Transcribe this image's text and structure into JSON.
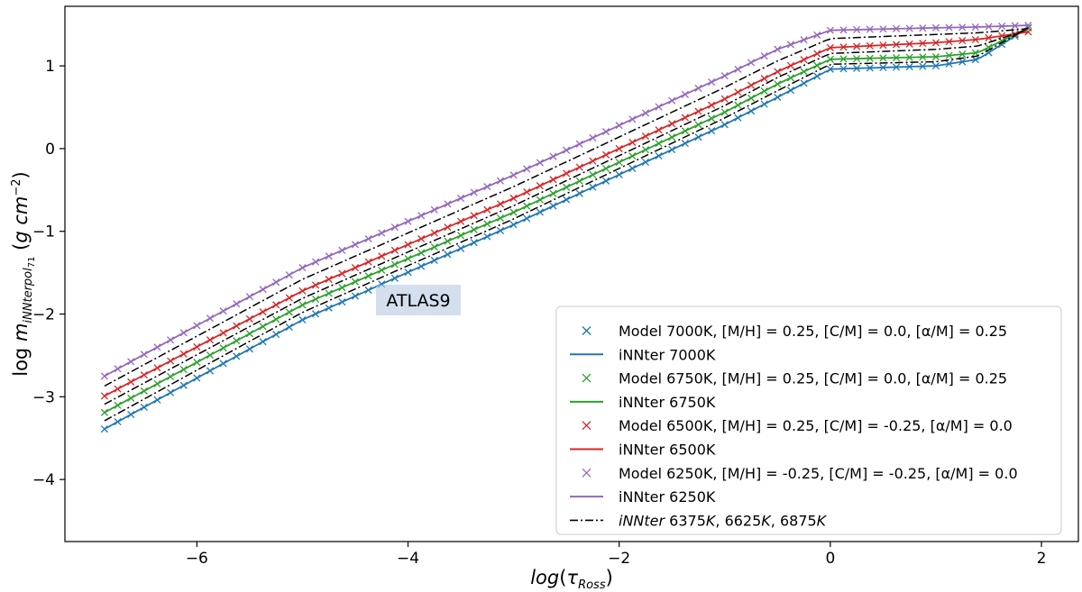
{
  "chart_data": {
    "type": "line",
    "xlabel": "log(τ_Ross)",
    "ylabel": "log m_iNNterpol71 (g cm^-2)",
    "xlim": [
      -7.25,
      2.35
    ],
    "ylim": [
      -4.75,
      1.72
    ],
    "xticks": [
      -6,
      -4,
      -2,
      0,
      2
    ],
    "yticks": [
      -4,
      -3,
      -2,
      -1,
      0,
      1
    ],
    "xtick_labels": [
      "−6",
      "−4",
      "−2",
      "0",
      "2"
    ],
    "ytick_labels": [
      "−4",
      "−3",
      "−2",
      "−1",
      "0",
      "1"
    ],
    "annotation": "ATLAS9",
    "x_range": [
      -6.875,
      1.875
    ],
    "series": [
      {
        "name": "Model 7000K, [M/H] = 0.25, [C/M] = 0.0,  [α/M] = 0.25",
        "kind": "model",
        "color": "#1f77b4",
        "anchors": [
          [
            -6.875,
            -3.39
          ],
          [
            -5.0,
            -2.07
          ],
          [
            -3.0,
            -0.92
          ],
          [
            -1.0,
            0.29
          ],
          [
            -0.5,
            0.62
          ],
          [
            0.0,
            0.96
          ],
          [
            1.0,
            1.0
          ],
          [
            1.4,
            1.08
          ],
          [
            1.875,
            1.46
          ]
        ]
      },
      {
        "name": "iNNter 7000K",
        "kind": "fit",
        "color": "#1f77b4",
        "anchors": [
          [
            -6.875,
            -3.39
          ],
          [
            -5.0,
            -2.07
          ],
          [
            -3.0,
            -0.92
          ],
          [
            -1.0,
            0.29
          ],
          [
            -0.5,
            0.62
          ],
          [
            0.0,
            0.96
          ],
          [
            1.0,
            1.0
          ],
          [
            1.4,
            1.08
          ],
          [
            1.875,
            1.46
          ]
        ]
      },
      {
        "name": "Model 6750K, [M/H] = 0.25, [C/M] = 0.0,  [α/M] = 0.25",
        "kind": "model",
        "color": "#2ca02c",
        "anchors": [
          [
            -6.875,
            -3.19
          ],
          [
            -5.0,
            -1.89
          ],
          [
            -3.0,
            -0.77
          ],
          [
            -1.0,
            0.44
          ],
          [
            -0.5,
            0.78
          ],
          [
            0.0,
            1.08
          ],
          [
            1.0,
            1.11
          ],
          [
            1.4,
            1.16
          ],
          [
            1.875,
            1.46
          ]
        ]
      },
      {
        "name": "iNNter 6750K",
        "kind": "fit",
        "color": "#2ca02c",
        "anchors": [
          [
            -6.875,
            -3.19
          ],
          [
            -5.0,
            -1.89
          ],
          [
            -3.0,
            -0.77
          ],
          [
            -1.0,
            0.44
          ],
          [
            -0.5,
            0.78
          ],
          [
            0.0,
            1.08
          ],
          [
            1.0,
            1.11
          ],
          [
            1.4,
            1.16
          ],
          [
            1.875,
            1.46
          ]
        ]
      },
      {
        "name": "Model 6500K, [M/H] = 0.25, [C/M] = -0.25,  [α/M] = 0.0",
        "kind": "model",
        "color": "#d62728",
        "anchors": [
          [
            -6.875,
            -2.99
          ],
          [
            -5.0,
            -1.72
          ],
          [
            -3.0,
            -0.6
          ],
          [
            -1.0,
            0.6
          ],
          [
            -0.5,
            0.93
          ],
          [
            0.0,
            1.22
          ],
          [
            1.0,
            1.28
          ],
          [
            1.4,
            1.32
          ],
          [
            1.875,
            1.41
          ]
        ]
      },
      {
        "name": "iNNter 6500K",
        "kind": "fit",
        "color": "#d62728",
        "anchors": [
          [
            -6.875,
            -2.99
          ],
          [
            -5.0,
            -1.72
          ],
          [
            -3.0,
            -0.6
          ],
          [
            -1.0,
            0.6
          ],
          [
            -0.5,
            0.93
          ],
          [
            0.0,
            1.22
          ],
          [
            1.0,
            1.28
          ],
          [
            1.4,
            1.32
          ],
          [
            1.875,
            1.41
          ]
        ]
      },
      {
        "name": "Model 6250K, [M/H] = -0.25, [C/M] = -0.25,  [α/M] = 0.0",
        "kind": "model",
        "color": "#9467bd",
        "anchors": [
          [
            -6.875,
            -2.75
          ],
          [
            -5.0,
            -1.44
          ],
          [
            -3.0,
            -0.32
          ],
          [
            -1.0,
            0.88
          ],
          [
            -0.5,
            1.2
          ],
          [
            0.0,
            1.43
          ],
          [
            1.0,
            1.46
          ],
          [
            1.4,
            1.47
          ],
          [
            1.875,
            1.49
          ]
        ]
      },
      {
        "name": "iNNter 6250K",
        "kind": "fit",
        "color": "#9467bd",
        "anchors": [
          [
            -6.875,
            -2.75
          ],
          [
            -5.0,
            -1.44
          ],
          [
            -3.0,
            -0.32
          ],
          [
            -1.0,
            0.88
          ],
          [
            -0.5,
            1.2
          ],
          [
            0.0,
            1.43
          ],
          [
            1.0,
            1.46
          ],
          [
            1.4,
            1.47
          ],
          [
            1.875,
            1.49
          ]
        ]
      },
      {
        "name": "iNNter 6375K, 6625K, 6875K",
        "kind": "interp",
        "color": "#000000",
        "label_parts": [
          "iNNter",
          " 6375",
          "K",
          ",  6625",
          "K",
          ",  6875",
          "K"
        ],
        "curves": [
          [
            [
              -6.875,
              -2.87
            ],
            [
              -5.0,
              -1.58
            ],
            [
              -3.0,
              -0.46
            ],
            [
              -1.0,
              0.74
            ],
            [
              -0.5,
              1.06
            ],
            [
              0.0,
              1.33
            ],
            [
              1.0,
              1.38
            ],
            [
              1.4,
              1.4
            ],
            [
              1.875,
              1.45
            ]
          ],
          [
            [
              -6.875,
              -3.09
            ],
            [
              -5.0,
              -1.81
            ],
            [
              -3.0,
              -0.69
            ],
            [
              -1.0,
              0.52
            ],
            [
              -0.5,
              0.86
            ],
            [
              0.0,
              1.15
            ],
            [
              1.0,
              1.2
            ],
            [
              1.4,
              1.24
            ],
            [
              1.875,
              1.44
            ]
          ],
          [
            [
              -6.875,
              -3.29
            ],
            [
              -5.0,
              -1.98
            ],
            [
              -3.0,
              -0.85
            ],
            [
              -1.0,
              0.37
            ],
            [
              -0.5,
              0.7
            ],
            [
              0.0,
              1.02
            ],
            [
              1.0,
              1.05
            ],
            [
              1.4,
              1.12
            ],
            [
              1.875,
              1.46
            ]
          ]
        ]
      }
    ]
  }
}
